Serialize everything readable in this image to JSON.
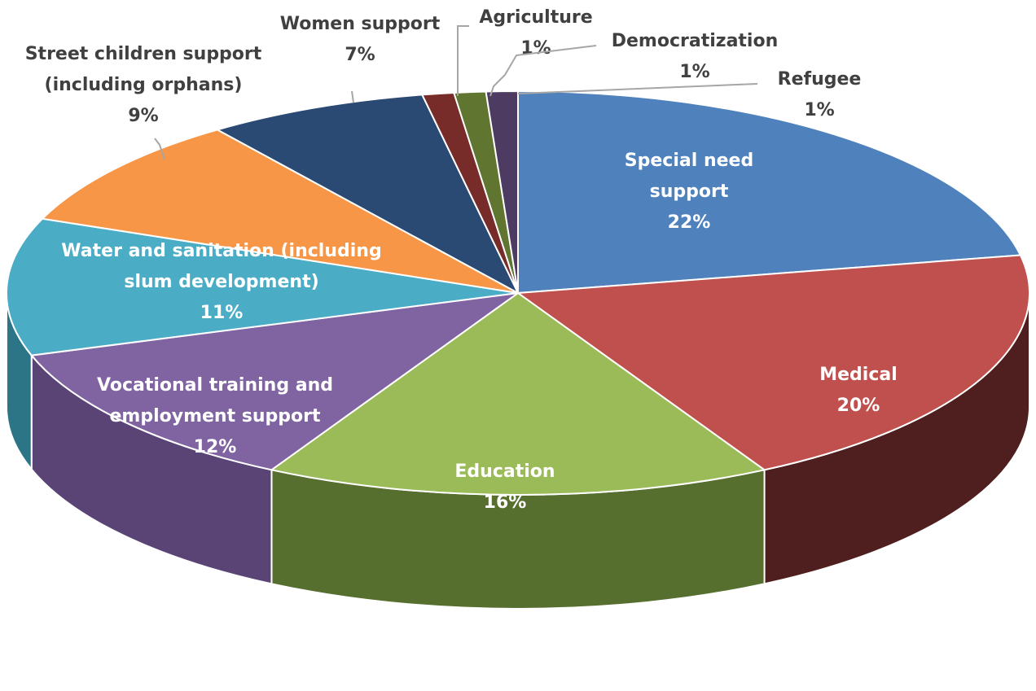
{
  "chart_data": {
    "type": "pie",
    "style": "3d",
    "title": "",
    "slices": [
      {
        "label": "Special need\nsupport",
        "percent_label": "22%",
        "value": 22,
        "color": "#4F81BD",
        "side_color": "#2E4A70",
        "label_color": "#ffffff"
      },
      {
        "label": "Medical",
        "percent_label": "20%",
        "value": 20,
        "color": "#C0504D",
        "side_color": "#4F1E1E",
        "label_color": "#ffffff"
      },
      {
        "label": "Education",
        "percent_label": "16%",
        "value": 16,
        "color": "#9BBB59",
        "side_color": "#566E2E",
        "label_color": "#ffffff"
      },
      {
        "label": "Vocational training and\nemployment support",
        "percent_label": "12%",
        "value": 12,
        "color": "#8064A2",
        "side_color": "#5A4476",
        "label_color": "#ffffff"
      },
      {
        "label": "Water and sanitation (including\nslum development)",
        "percent_label": "11%",
        "value": 11,
        "color": "#4BACC6",
        "side_color": "#2C7587",
        "label_color": "#ffffff"
      },
      {
        "label": "Street children support\n(including orphans)",
        "percent_label": "9%",
        "value": 9,
        "color": "#F79646",
        "side_color": "#A75F22",
        "label_color": "#404040"
      },
      {
        "label": "Women support",
        "percent_label": "7%",
        "value": 7,
        "color": "#2A4A74",
        "side_color": "#1A2E4A",
        "label_color": "#404040"
      },
      {
        "label": "Agriculture",
        "percent_label": "1%",
        "value": 1,
        "color": "#772C2A",
        "side_color": "#4A1A18",
        "label_color": "#404040"
      },
      {
        "label": "Democratization",
        "percent_label": "1%",
        "value": 1,
        "color": "#5F7530",
        "side_color": "#3C4A1E",
        "label_color": "#404040"
      },
      {
        "label": "Refugee",
        "percent_label": "1%",
        "value": 1,
        "color": "#4D3B62",
        "side_color": "#30253E",
        "label_color": "#404040"
      }
    ]
  }
}
